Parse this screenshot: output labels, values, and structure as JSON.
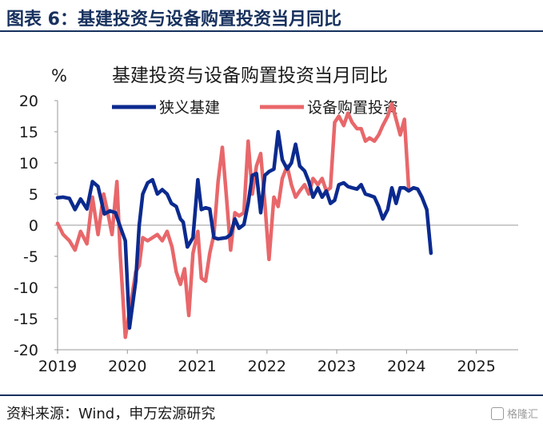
{
  "figure": {
    "title": "图表 6：基建投资与设备购置投资当月同比",
    "source": "资料来源：Wind，申万宏源研究",
    "watermark": "格隆汇"
  },
  "colors": {
    "header": "#17315e",
    "infra": "#0b2a8f",
    "equipment": "#e8676a"
  },
  "chart_data": {
    "type": "line",
    "title": "基建投资与设备购置投资当月同比",
    "ylabel": "%",
    "xlabel": "",
    "ylim": [
      -20,
      20
    ],
    "yticks": [
      20,
      15,
      10,
      5,
      0,
      -5,
      -10,
      -15,
      -20
    ],
    "xlim": [
      2019.0,
      2025.6
    ],
    "xticks": [
      "2019",
      "2020",
      "2021",
      "2022",
      "2023",
      "2024",
      "2025"
    ],
    "grid": false,
    "legend": "top",
    "series": [
      {
        "name": "狭义基建",
        "color": "#0b2a8f",
        "points": [
          [
            2019.0,
            4.4
          ],
          [
            2019.08,
            4.5
          ],
          [
            2019.17,
            4.3
          ],
          [
            2019.25,
            2.5
          ],
          [
            2019.33,
            4.2
          ],
          [
            2019.42,
            2.6
          ],
          [
            2019.5,
            7.0
          ],
          [
            2019.58,
            6.2
          ],
          [
            2019.67,
            1.8
          ],
          [
            2019.75,
            2.3
          ],
          [
            2019.83,
            2.0
          ],
          [
            2019.9,
            -0.3
          ],
          [
            2019.97,
            -2.5
          ],
          [
            2020.03,
            -16.5
          ],
          [
            2020.12,
            -9.0
          ],
          [
            2020.17,
            0.0
          ],
          [
            2020.22,
            5.0
          ],
          [
            2020.29,
            6.8
          ],
          [
            2020.36,
            7.3
          ],
          [
            2020.43,
            5.0
          ],
          [
            2020.5,
            5.7
          ],
          [
            2020.57,
            5.0
          ],
          [
            2020.63,
            3.5
          ],
          [
            2020.7,
            3.0
          ],
          [
            2020.76,
            1.0
          ],
          [
            2020.8,
            0.5
          ],
          [
            2020.86,
            -3.5
          ],
          [
            2020.94,
            -2.0
          ],
          [
            2021.01,
            7.3
          ],
          [
            2021.06,
            2.5
          ],
          [
            2021.12,
            2.8
          ],
          [
            2021.18,
            2.6
          ],
          [
            2021.24,
            -2.0
          ],
          [
            2021.3,
            -2.2
          ],
          [
            2021.36,
            -2.1
          ],
          [
            2021.42,
            -2.0
          ],
          [
            2021.48,
            -1.5
          ],
          [
            2021.54,
            1.0
          ],
          [
            2021.6,
            -0.5
          ],
          [
            2021.67,
            0.1
          ],
          [
            2021.73,
            3.5
          ],
          [
            2021.79,
            8.0
          ],
          [
            2021.85,
            8.3
          ],
          [
            2021.91,
            2.0
          ],
          [
            2021.97,
            8.0
          ],
          [
            2022.03,
            8.6
          ],
          [
            2022.1,
            9.0
          ],
          [
            2022.16,
            15.0
          ],
          [
            2022.22,
            10.5
          ],
          [
            2022.29,
            9.0
          ],
          [
            2022.35,
            10.0
          ],
          [
            2022.41,
            13.0
          ],
          [
            2022.47,
            9.5
          ],
          [
            2022.54,
            8.7
          ],
          [
            2022.6,
            7.0
          ],
          [
            2022.66,
            4.5
          ],
          [
            2022.73,
            6.0
          ],
          [
            2022.79,
            4.5
          ],
          [
            2022.85,
            5.5
          ],
          [
            2022.91,
            3.5
          ],
          [
            2022.97,
            4.0
          ],
          [
            2023.03,
            6.5
          ],
          [
            2023.1,
            6.8
          ],
          [
            2023.16,
            6.2
          ],
          [
            2023.22,
            6.0
          ],
          [
            2023.29,
            5.8
          ],
          [
            2023.35,
            6.5
          ],
          [
            2023.41,
            5.0
          ],
          [
            2023.47,
            4.8
          ],
          [
            2023.54,
            4.5
          ],
          [
            2023.6,
            3.0
          ],
          [
            2023.66,
            1.0
          ],
          [
            2023.73,
            2.5
          ],
          [
            2023.79,
            6.0
          ],
          [
            2023.85,
            3.5
          ],
          [
            2023.91,
            6.0
          ],
          [
            2023.97,
            6.0
          ],
          [
            2024.03,
            5.5
          ],
          [
            2024.1,
            6.0
          ],
          [
            2024.16,
            5.8
          ],
          [
            2024.22,
            4.5
          ],
          [
            2024.29,
            2.5
          ],
          [
            2024.35,
            -4.5
          ]
        ]
      },
      {
        "name": "设备购置投资",
        "color": "#e8676a",
        "points": [
          [
            2019.0,
            0.3
          ],
          [
            2019.08,
            -1.5
          ],
          [
            2019.17,
            -2.5
          ],
          [
            2019.25,
            -4.0
          ],
          [
            2019.33,
            -1.0
          ],
          [
            2019.42,
            -3.0
          ],
          [
            2019.5,
            4.5
          ],
          [
            2019.58,
            -1.5
          ],
          [
            2019.66,
            5.0
          ],
          [
            2019.72,
            2.0
          ],
          [
            2019.78,
            -1.5
          ],
          [
            2019.85,
            7.0
          ],
          [
            2019.9,
            -5.0
          ],
          [
            2019.97,
            -18.0
          ],
          [
            2020.03,
            -14.0
          ],
          [
            2020.12,
            -7.5
          ],
          [
            2020.17,
            -6.5
          ],
          [
            2020.22,
            -2.0
          ],
          [
            2020.29,
            -2.5
          ],
          [
            2020.36,
            -2.0
          ],
          [
            2020.43,
            -1.5
          ],
          [
            2020.5,
            -2.5
          ],
          [
            2020.57,
            -1.0
          ],
          [
            2020.64,
            -3.5
          ],
          [
            2020.7,
            -7.5
          ],
          [
            2020.76,
            -9.5
          ],
          [
            2020.82,
            -7.0
          ],
          [
            2020.88,
            -14.5
          ],
          [
            2020.94,
            -4.5
          ],
          [
            2021.01,
            -1.0
          ],
          [
            2021.06,
            -8.5
          ],
          [
            2021.12,
            -9.0
          ],
          [
            2021.18,
            -4.5
          ],
          [
            2021.24,
            -1.5
          ],
          [
            2021.3,
            7.0
          ],
          [
            2021.36,
            12.5
          ],
          [
            2021.42,
            4.5
          ],
          [
            2021.48,
            -4.0
          ],
          [
            2021.54,
            2.0
          ],
          [
            2021.6,
            1.5
          ],
          [
            2021.67,
            2.0
          ],
          [
            2021.73,
            13.5
          ],
          [
            2021.79,
            5.0
          ],
          [
            2021.85,
            9.5
          ],
          [
            2021.91,
            11.5
          ],
          [
            2021.97,
            3.5
          ],
          [
            2022.03,
            -5.5
          ],
          [
            2022.1,
            4.5
          ],
          [
            2022.16,
            3.0
          ],
          [
            2022.22,
            7.5
          ],
          [
            2022.29,
            9.5
          ],
          [
            2022.35,
            6.5
          ],
          [
            2022.41,
            4.5
          ],
          [
            2022.47,
            5.5
          ],
          [
            2022.54,
            6.5
          ],
          [
            2022.6,
            5.0
          ],
          [
            2022.66,
            7.5
          ],
          [
            2022.73,
            6.5
          ],
          [
            2022.79,
            7.5
          ],
          [
            2022.85,
            5.5
          ],
          [
            2022.91,
            6.0
          ],
          [
            2022.97,
            16.5
          ],
          [
            2023.03,
            17.5
          ],
          [
            2023.1,
            16.0
          ],
          [
            2023.16,
            18.0
          ],
          [
            2023.22,
            16.5
          ],
          [
            2023.29,
            15.5
          ],
          [
            2023.35,
            15.5
          ],
          [
            2023.41,
            13.5
          ],
          [
            2023.47,
            14.0
          ],
          [
            2023.54,
            13.5
          ],
          [
            2023.6,
            14.5
          ],
          [
            2023.66,
            16.0
          ],
          [
            2023.73,
            17.5
          ],
          [
            2023.79,
            19.5
          ],
          [
            2023.85,
            17.0
          ],
          [
            2023.91,
            14.5
          ],
          [
            2023.97,
            17.0
          ],
          [
            2024.03,
            6.0
          ]
        ]
      }
    ]
  }
}
